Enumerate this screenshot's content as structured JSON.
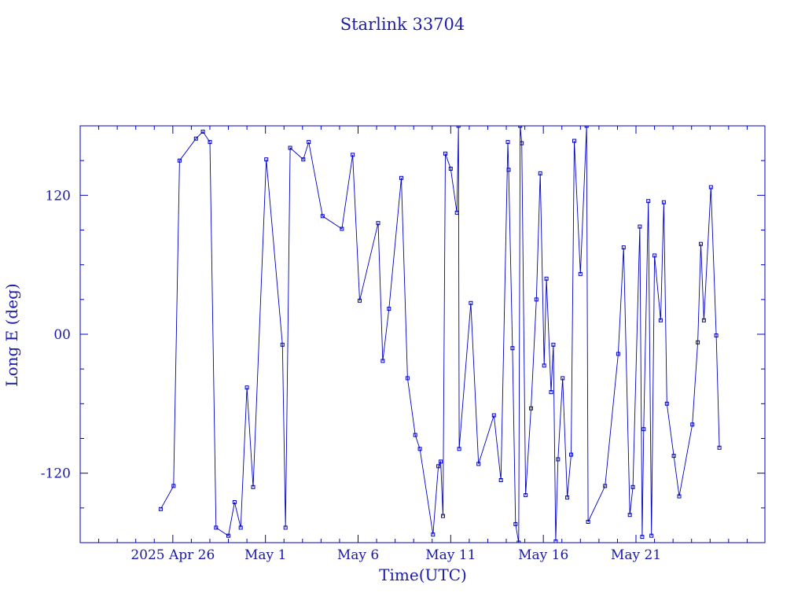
{
  "chart_data": {
    "type": "line",
    "title": "Starlink 33704",
    "xlabel": "Time(UTC)",
    "ylabel": "Long E (deg)",
    "color": "#0000c0",
    "text_color": "#1a1aa6",
    "marker": "square",
    "grid": false,
    "xlim": [
      "2025-04-21",
      "2025-05-27T23:00"
    ],
    "ylim": [
      -180,
      180
    ],
    "x_ticks": [
      {
        "date": "2025-04-26",
        "label": "2025 Apr 26"
      },
      {
        "date": "2025-05-01",
        "label": "May  1"
      },
      {
        "date": "2025-05-06",
        "label": "May  6"
      },
      {
        "date": "2025-05-11",
        "label": "May 11"
      },
      {
        "date": "2025-05-16",
        "label": "May 16"
      },
      {
        "date": "2025-05-21",
        "label": "May 21"
      }
    ],
    "y_ticks": [
      {
        "value": 120,
        "label": "120"
      },
      {
        "value": 0,
        "label": "00"
      },
      {
        "value": -120,
        "label": "-120"
      }
    ],
    "points": [
      {
        "t": "2025-04-25T08:19",
        "lon": -151
      },
      {
        "t": "2025-04-26T01:00",
        "lon": -131
      },
      {
        "t": "2025-04-26T08:43",
        "lon": 150
      },
      {
        "t": "2025-04-27T06:00",
        "lon": 169
      },
      {
        "t": "2025-04-27T15:00",
        "lon": 175
      },
      {
        "t": "2025-04-28T00:00",
        "lon": 166
      },
      {
        "t": "2025-04-28T08:00",
        "lon": -167
      },
      {
        "t": "2025-04-29T00:00",
        "lon": -174
      },
      {
        "t": "2025-04-29T08:00",
        "lon": -145
      },
      {
        "t": "2025-04-29T16:00",
        "lon": -167
      },
      {
        "t": "2025-04-30T00:00",
        "lon": -46
      },
      {
        "t": "2025-04-30T08:00",
        "lon": -132
      },
      {
        "t": "2025-05-01T01:00",
        "lon": 151
      },
      {
        "t": "2025-05-01T22:00",
        "lon": -9
      },
      {
        "t": "2025-05-02T02:00",
        "lon": -167
      },
      {
        "t": "2025-05-02T08:00",
        "lon": 161
      },
      {
        "t": "2025-05-03T01:00",
        "lon": 151
      },
      {
        "t": "2025-05-03T08:00",
        "lon": 166
      },
      {
        "t": "2025-05-04T02:00",
        "lon": 102
      },
      {
        "t": "2025-05-05T03:00",
        "lon": 91
      },
      {
        "t": "2025-05-05T17:00",
        "lon": 155
      },
      {
        "t": "2025-05-06T02:00",
        "lon": 29
      },
      {
        "t": "2025-05-07T02:00",
        "lon": 96
      },
      {
        "t": "2025-05-07T08:00",
        "lon": -23
      },
      {
        "t": "2025-05-07T16:00",
        "lon": 22
      },
      {
        "t": "2025-05-08T08:00",
        "lon": 135
      },
      {
        "t": "2025-05-08T16:00",
        "lon": -38
      },
      {
        "t": "2025-05-09T02:00",
        "lon": -87
      },
      {
        "t": "2025-05-09T08:00",
        "lon": -99
      },
      {
        "t": "2025-05-10T01:00",
        "lon": -173
      },
      {
        "t": "2025-05-10T08:00",
        "lon": -114
      },
      {
        "t": "2025-05-10T11:00",
        "lon": -110
      },
      {
        "t": "2025-05-10T14:00",
        "lon": -157
      },
      {
        "t": "2025-05-10T17:00",
        "lon": 156
      },
      {
        "t": "2025-05-11T00:00",
        "lon": 143
      },
      {
        "t": "2025-05-11T08:00",
        "lon": 105
      },
      {
        "t": "2025-05-11T10:00",
        "lon": 180
      },
      {
        "t": "2025-05-11T11:00",
        "lon": -99
      },
      {
        "t": "2025-05-12T02:00",
        "lon": 27
      },
      {
        "t": "2025-05-12T12:00",
        "lon": -112
      },
      {
        "t": "2025-05-13T08:00",
        "lon": -70
      },
      {
        "t": "2025-05-13T17:00",
        "lon": -126
      },
      {
        "t": "2025-05-14T02:00",
        "lon": 166
      },
      {
        "t": "2025-05-14T03:00",
        "lon": 142
      },
      {
        "t": "2025-05-14T08:00",
        "lon": -12
      },
      {
        "t": "2025-05-14T12:00",
        "lon": -164
      },
      {
        "t": "2025-05-14T16:00",
        "lon": -180
      },
      {
        "t": "2025-05-14T18:00",
        "lon": 180
      },
      {
        "t": "2025-05-14T20:00",
        "lon": 165
      },
      {
        "t": "2025-05-15T01:00",
        "lon": -139
      },
      {
        "t": "2025-05-15T08:00",
        "lon": -64
      },
      {
        "t": "2025-05-15T15:00",
        "lon": 30
      },
      {
        "t": "2025-05-15T20:00",
        "lon": 139
      },
      {
        "t": "2025-05-16T01:00",
        "lon": -27
      },
      {
        "t": "2025-05-16T04:00",
        "lon": 48
      },
      {
        "t": "2025-05-16T10:00",
        "lon": -50
      },
      {
        "t": "2025-05-16T13:00",
        "lon": -9
      },
      {
        "t": "2025-05-16T16:00",
        "lon": -179
      },
      {
        "t": "2025-05-16T19:00",
        "lon": -108
      },
      {
        "t": "2025-05-17T01:00",
        "lon": -38
      },
      {
        "t": "2025-05-17T07:00",
        "lon": -141
      },
      {
        "t": "2025-05-17T12:00",
        "lon": -104
      },
      {
        "t": "2025-05-17T16:00",
        "lon": 167
      },
      {
        "t": "2025-05-18T00:00",
        "lon": 52
      },
      {
        "t": "2025-05-18T08:00",
        "lon": 180
      },
      {
        "t": "2025-05-18T10:00",
        "lon": -162
      },
      {
        "t": "2025-05-19T08:00",
        "lon": -131
      },
      {
        "t": "2025-05-20T01:00",
        "lon": -17
      },
      {
        "t": "2025-05-20T08:00",
        "lon": 75
      },
      {
        "t": "2025-05-20T16:00",
        "lon": -156
      },
      {
        "t": "2025-05-20T20:00",
        "lon": -132
      },
      {
        "t": "2025-05-21T05:00",
        "lon": 93
      },
      {
        "t": "2025-05-21T08:00",
        "lon": -175
      },
      {
        "t": "2025-05-21T10:00",
        "lon": -82
      },
      {
        "t": "2025-05-21T16:00",
        "lon": 115
      },
      {
        "t": "2025-05-21T20:00",
        "lon": -174
      },
      {
        "t": "2025-05-22T00:00",
        "lon": 68
      },
      {
        "t": "2025-05-22T08:00",
        "lon": 12
      },
      {
        "t": "2025-05-22T12:00",
        "lon": 114
      },
      {
        "t": "2025-05-22T16:00",
        "lon": -60
      },
      {
        "t": "2025-05-23T01:00",
        "lon": -105
      },
      {
        "t": "2025-05-23T08:00",
        "lon": -140
      },
      {
        "t": "2025-05-24T01:00",
        "lon": -78
      },
      {
        "t": "2025-05-24T08:00",
        "lon": -7
      },
      {
        "t": "2025-05-24T12:00",
        "lon": 78
      },
      {
        "t": "2025-05-24T16:00",
        "lon": 12
      },
      {
        "t": "2025-05-25T01:00",
        "lon": 127
      },
      {
        "t": "2025-05-25T08:00",
        "lon": -1
      },
      {
        "t": "2025-05-25T12:00",
        "lon": -98
      }
    ]
  }
}
